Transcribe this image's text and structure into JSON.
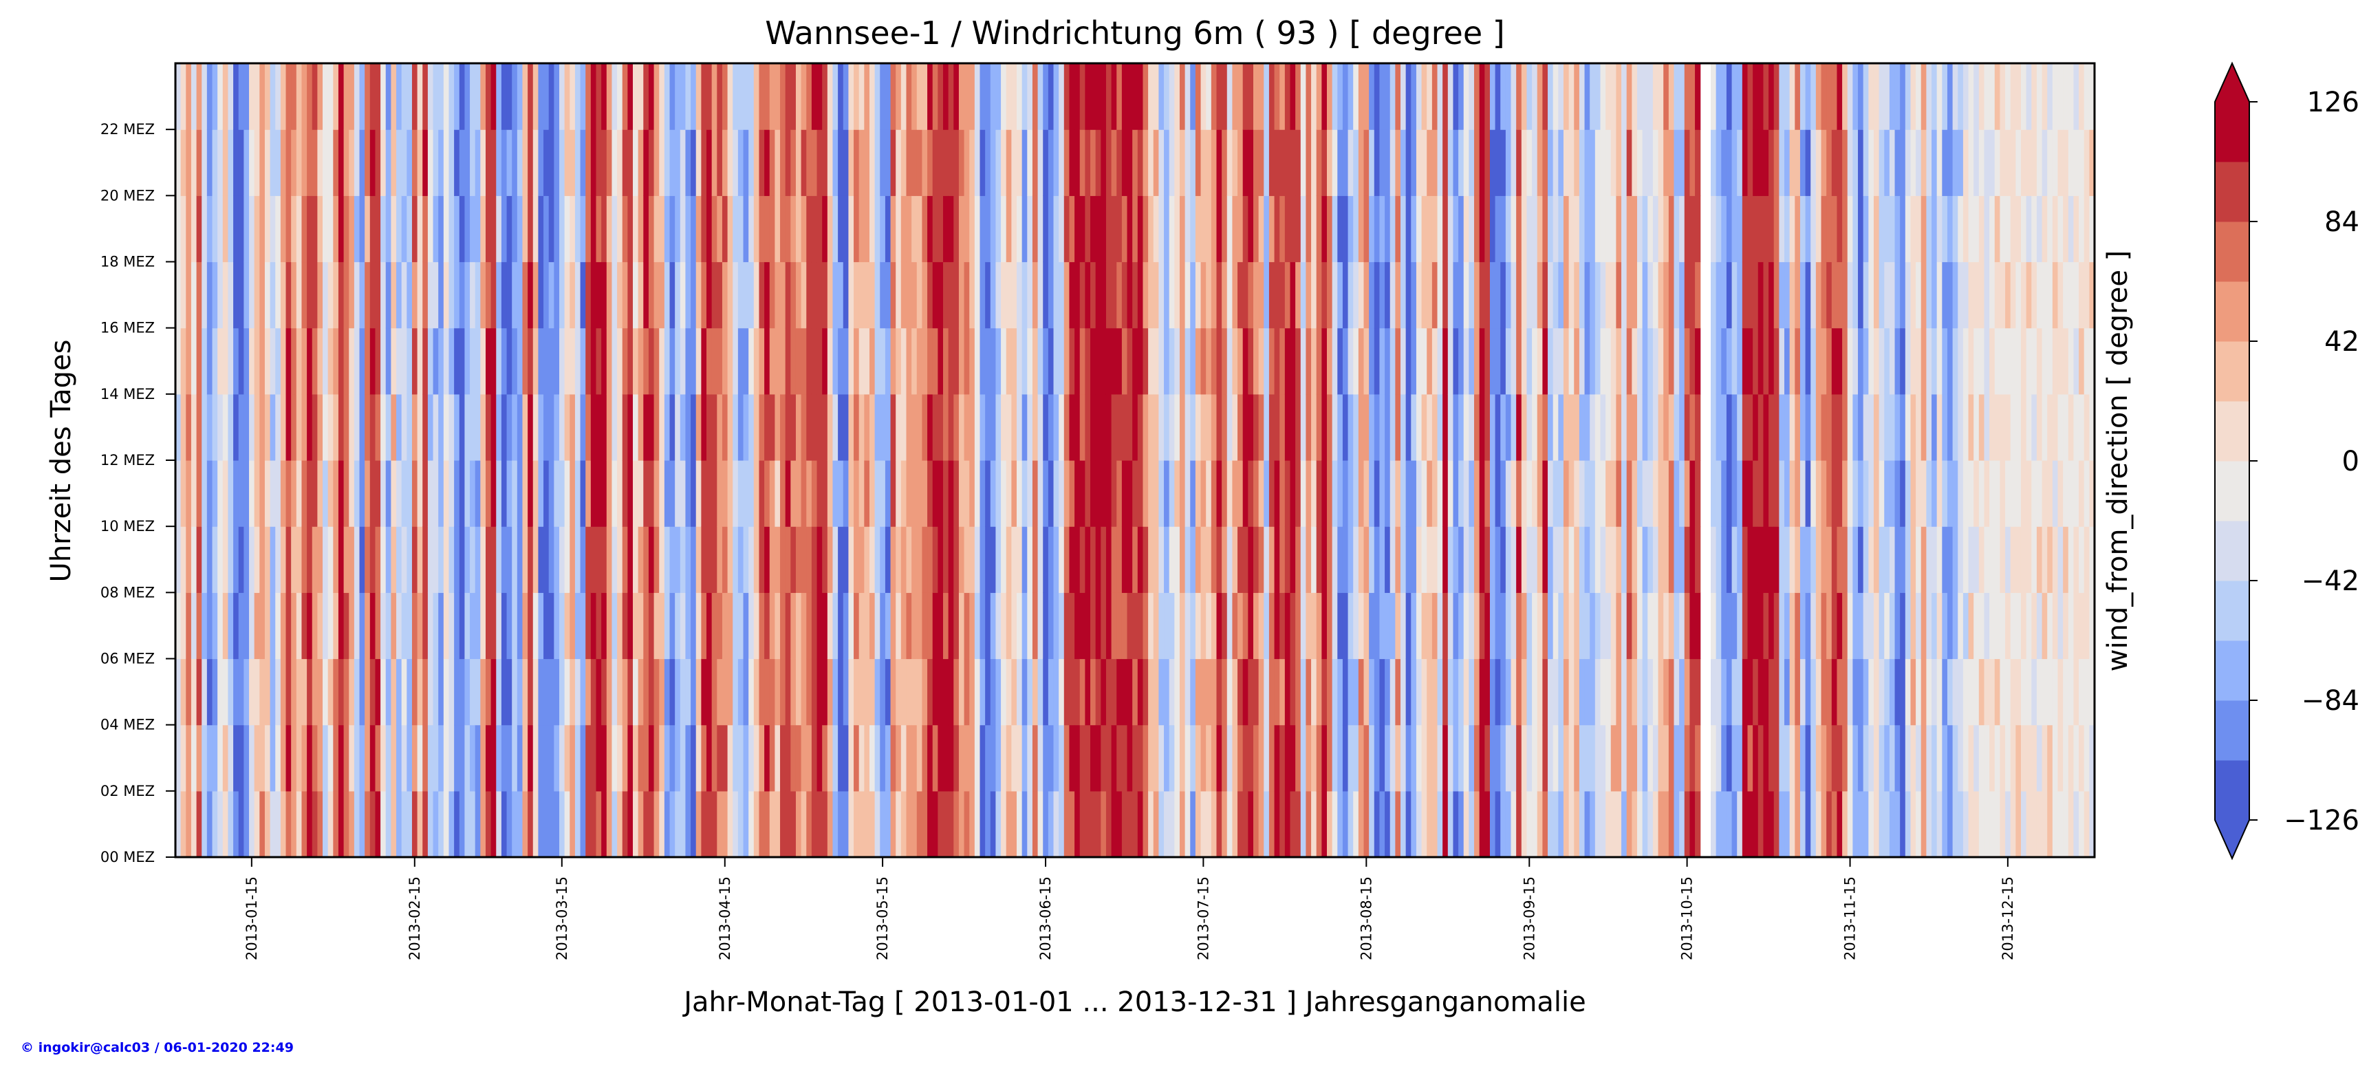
{
  "chart_data": {
    "type": "heatmap",
    "title": "Wannsee-1 / Windrichtung 6m ( 93 ) [ degree ]",
    "xlabel": "Jahr-Monat-Tag [ 2013-01-01 ... 2013-12-31 ] Jahresganganomalie",
    "ylabel": "Uhrzeit des Tages",
    "colorbar_label": "wind_from_direction [ degree ]",
    "x_range": [
      "2013-01-01",
      "2013-12-31"
    ],
    "x_ticks": [
      "2013-01-15",
      "2013-02-15",
      "2013-03-15",
      "2013-04-15",
      "2013-05-15",
      "2013-06-15",
      "2013-07-15",
      "2013-08-15",
      "2013-09-15",
      "2013-10-15",
      "2013-11-15",
      "2013-12-15"
    ],
    "y_range": [
      0,
      24
    ],
    "y_ticks": [
      {
        "hour": 0,
        "label": "00 MEZ"
      },
      {
        "hour": 2,
        "label": "02 MEZ"
      },
      {
        "hour": 4,
        "label": "04 MEZ"
      },
      {
        "hour": 6,
        "label": "06 MEZ"
      },
      {
        "hour": 8,
        "label": "08 MEZ"
      },
      {
        "hour": 10,
        "label": "10 MEZ"
      },
      {
        "hour": 12,
        "label": "12 MEZ"
      },
      {
        "hour": 14,
        "label": "14 MEZ"
      },
      {
        "hour": 16,
        "label": "16 MEZ"
      },
      {
        "hour": 18,
        "label": "18 MEZ"
      },
      {
        "hour": 20,
        "label": "20 MEZ"
      },
      {
        "hour": 22,
        "label": "22 MEZ"
      }
    ],
    "colorbar": {
      "min": -126,
      "max": 126,
      "extend": "both",
      "levels": [
        -126,
        -105,
        -84,
        -63,
        -42,
        -21,
        0,
        21,
        42,
        63,
        84,
        105,
        126
      ],
      "ticks": [
        {
          "value": -126,
          "label": "−126"
        },
        {
          "value": -84,
          "label": "−84"
        },
        {
          "value": -42,
          "label": "−42"
        },
        {
          "value": 0,
          "label": "0"
        },
        {
          "value": 42,
          "label": "42"
        },
        {
          "value": 84,
          "label": "84"
        },
        {
          "value": 126,
          "label": "126"
        }
      ],
      "colors": [
        "#4a5fd4",
        "#6e8ff0",
        "#93b3fb",
        "#b8cff7",
        "#d6dcef",
        "#ebe9e7",
        "#f4dccf",
        "#f5c0a5",
        "#ee9c7e",
        "#dc6f59",
        "#c43e3e",
        "#b40426"
      ]
    },
    "daily_anomaly_approx": [
      -30,
      20,
      60,
      -10,
      80,
      -40,
      -90,
      -70,
      -20,
      10,
      -50,
      -100,
      -110,
      -80,
      -20,
      30,
      50,
      20,
      -60,
      -30,
      40,
      90,
      60,
      20,
      60,
      100,
      70,
      40,
      -30,
      10,
      60,
      110,
      80,
      30,
      -40,
      -90,
      60,
      110,
      90,
      -20,
      -70,
      30,
      -60,
      -40,
      -60,
      70,
      20,
      90,
      -40,
      -60,
      -80,
      -10,
      -50,
      -90,
      -110,
      -70,
      -60,
      -80,
      40,
      100,
      110,
      -60,
      -110,
      -100,
      -70,
      -80,
      50,
      100,
      20,
      -90,
      -110,
      -100,
      -80,
      -40,
      10,
      30,
      -50,
      -90,
      80,
      110,
      100,
      110,
      50,
      -30,
      20,
      70,
      110,
      20,
      40,
      90,
      100,
      60,
      20,
      -70,
      -90,
      -60,
      -40,
      -80,
      -100,
      30,
      90,
      100,
      80,
      70,
      70,
      30,
      -40,
      -70,
      -80,
      -40,
      30,
      80,
      100,
      60,
      40,
      70,
      90,
      70,
      50,
      60,
      70,
      90,
      110,
      100,
      30,
      -60,
      -100,
      -110,
      20,
      60,
      30,
      40,
      20,
      -60,
      -80,
      -90,
      70,
      20,
      40,
      60,
      40,
      50,
      60,
      100,
      100,
      110,
      100,
      110,
      100,
      40,
      60,
      40,
      -20,
      -100,
      -110,
      -90,
      -50,
      0,
      30,
      20,
      -10,
      -80,
      -20,
      60,
      -40,
      -110,
      -90,
      -60,
      -30,
      70,
      100,
      110,
      100,
      110,
      100,
      110,
      100,
      110,
      100,
      90,
      100,
      110,
      90,
      110,
      70,
      20,
      40,
      -50,
      -60,
      -40,
      0,
      40,
      -30,
      -70,
      40,
      40,
      20,
      50,
      110,
      70,
      -20,
      40,
      70,
      90,
      100,
      70,
      50,
      -50,
      80,
      90,
      80,
      100,
      110,
      80,
      -40,
      60,
      20,
      70,
      110,
      60,
      -40,
      -90,
      -100,
      -60,
      -40,
      40,
      50,
      -80,
      -110,
      -90,
      -100,
      -50,
      60,
      -50,
      -110,
      -80,
      -10,
      20,
      40,
      40,
      -30,
      100,
      -40,
      -90,
      -70,
      -10,
      -50,
      60,
      110,
      100,
      -90,
      -110,
      -100,
      -60,
      -20,
      90,
      20,
      -30,
      -20,
      30,
      90,
      -60,
      -30,
      -50,
      40,
      20,
      30,
      -50,
      -80,
      -60,
      -30,
      -20,
      0,
      20,
      40,
      -40,
      70,
      30,
      -20,
      -60,
      -30,
      -10,
      20,
      40,
      60,
      -60,
      -50,
      70,
      90,
      100,
      -20,
      70,
      -40,
      -60,
      -90,
      -100,
      -80,
      -60,
      110,
      100,
      110,
      110,
      110,
      100,
      90,
      -50,
      -80,
      20,
      60,
      -60,
      -100,
      -40,
      30,
      60,
      80,
      90,
      100,
      60,
      -20,
      -60,
      -90,
      -50,
      -20,
      20,
      -30,
      -40,
      -60,
      -90,
      -110,
      -30,
      20,
      -10,
      40,
      -30,
      -60,
      -20,
      -70,
      -80,
      -60,
      -40,
      -20,
      0,
      -10,
      10,
      -20
    ],
    "missing_data_days": [
      290,
      291
    ]
  },
  "footer": {
    "credit": "© ingokir@calc03 / 06-01-2020 22:49"
  }
}
